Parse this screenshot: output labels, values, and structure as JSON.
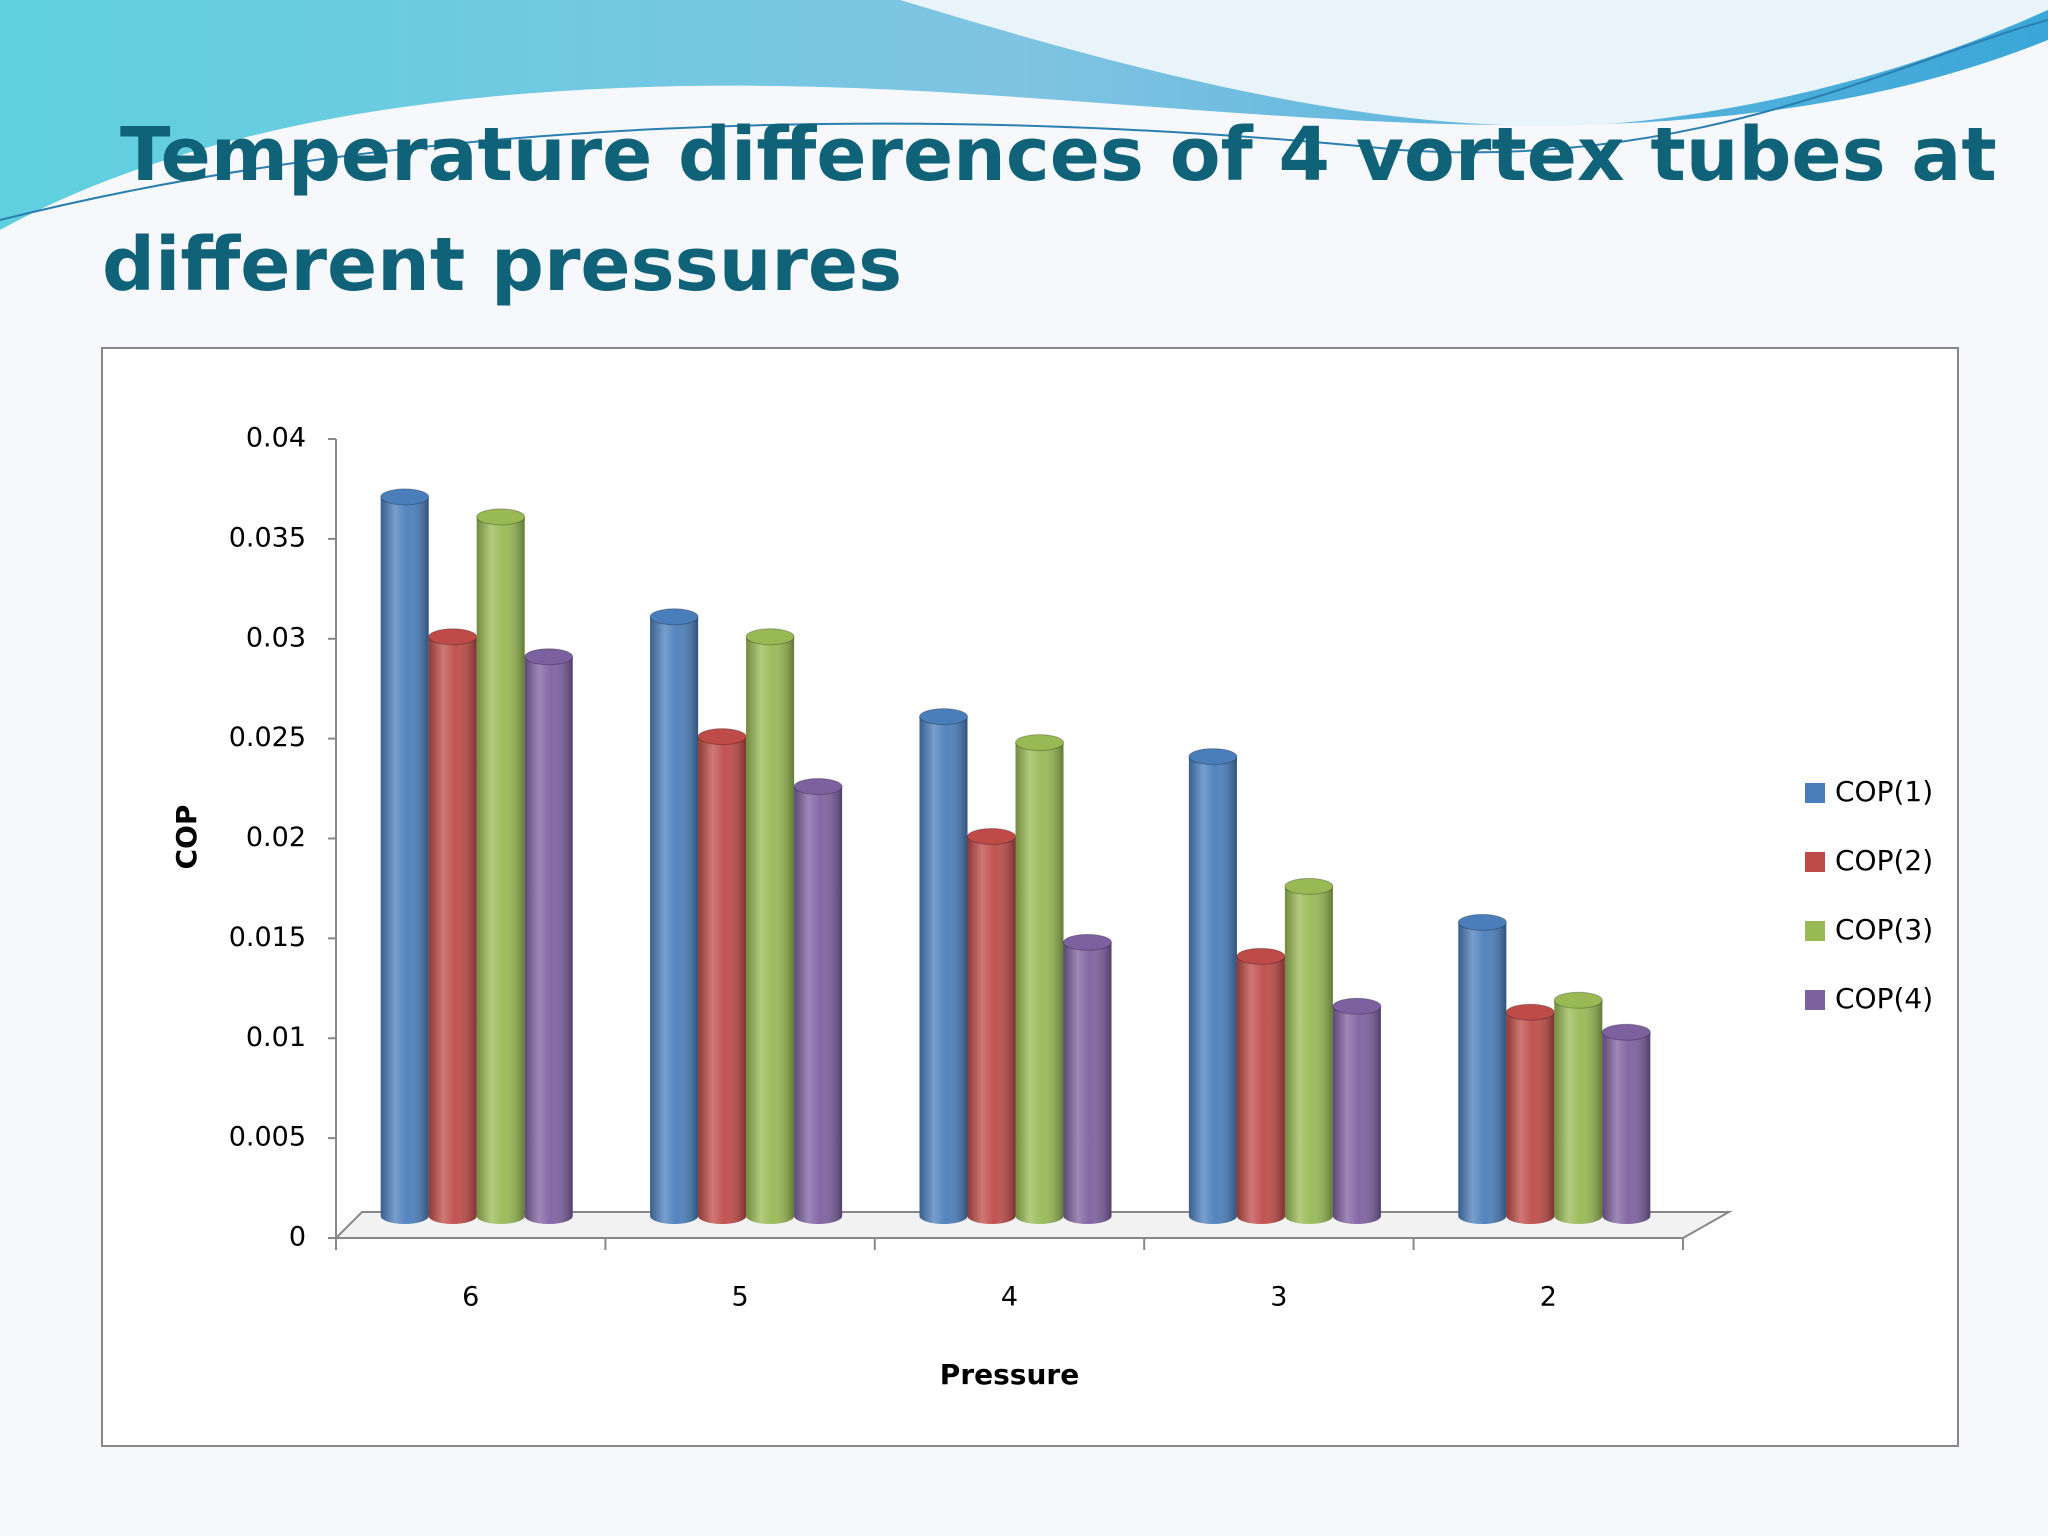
{
  "chart_data": {
    "type": "bar3d",
    "title": "Temperature differences of 4 vortex tubes at",
    "title_line2": "different pressures",
    "x_label": "Pressure",
    "y_label": "COP",
    "categories": [
      "6",
      "5",
      "4",
      "3",
      "2"
    ],
    "series": [
      {
        "name": "COP(1)",
        "color": "#4a7ebb",
        "values": [
          0.036,
          0.03,
          0.025,
          0.023,
          0.0147
        ]
      },
      {
        "name": "COP(2)",
        "color": "#be4b48",
        "values": [
          0.029,
          0.024,
          0.019,
          0.013,
          0.0102
        ]
      },
      {
        "name": "COP(3)",
        "color": "#98b954",
        "values": [
          0.035,
          0.029,
          0.0237,
          0.0165,
          0.0108
        ]
      },
      {
        "name": "COP(4)",
        "color": "#7d60a0",
        "values": [
          0.028,
          0.0215,
          0.0137,
          0.0105,
          0.0092
        ]
      }
    ],
    "ylim": [
      0,
      0.04
    ],
    "yticks": [
      0,
      0.005,
      0.01,
      0.015,
      0.02,
      0.025,
      0.03,
      0.035,
      0.04
    ],
    "legend": "right"
  }
}
